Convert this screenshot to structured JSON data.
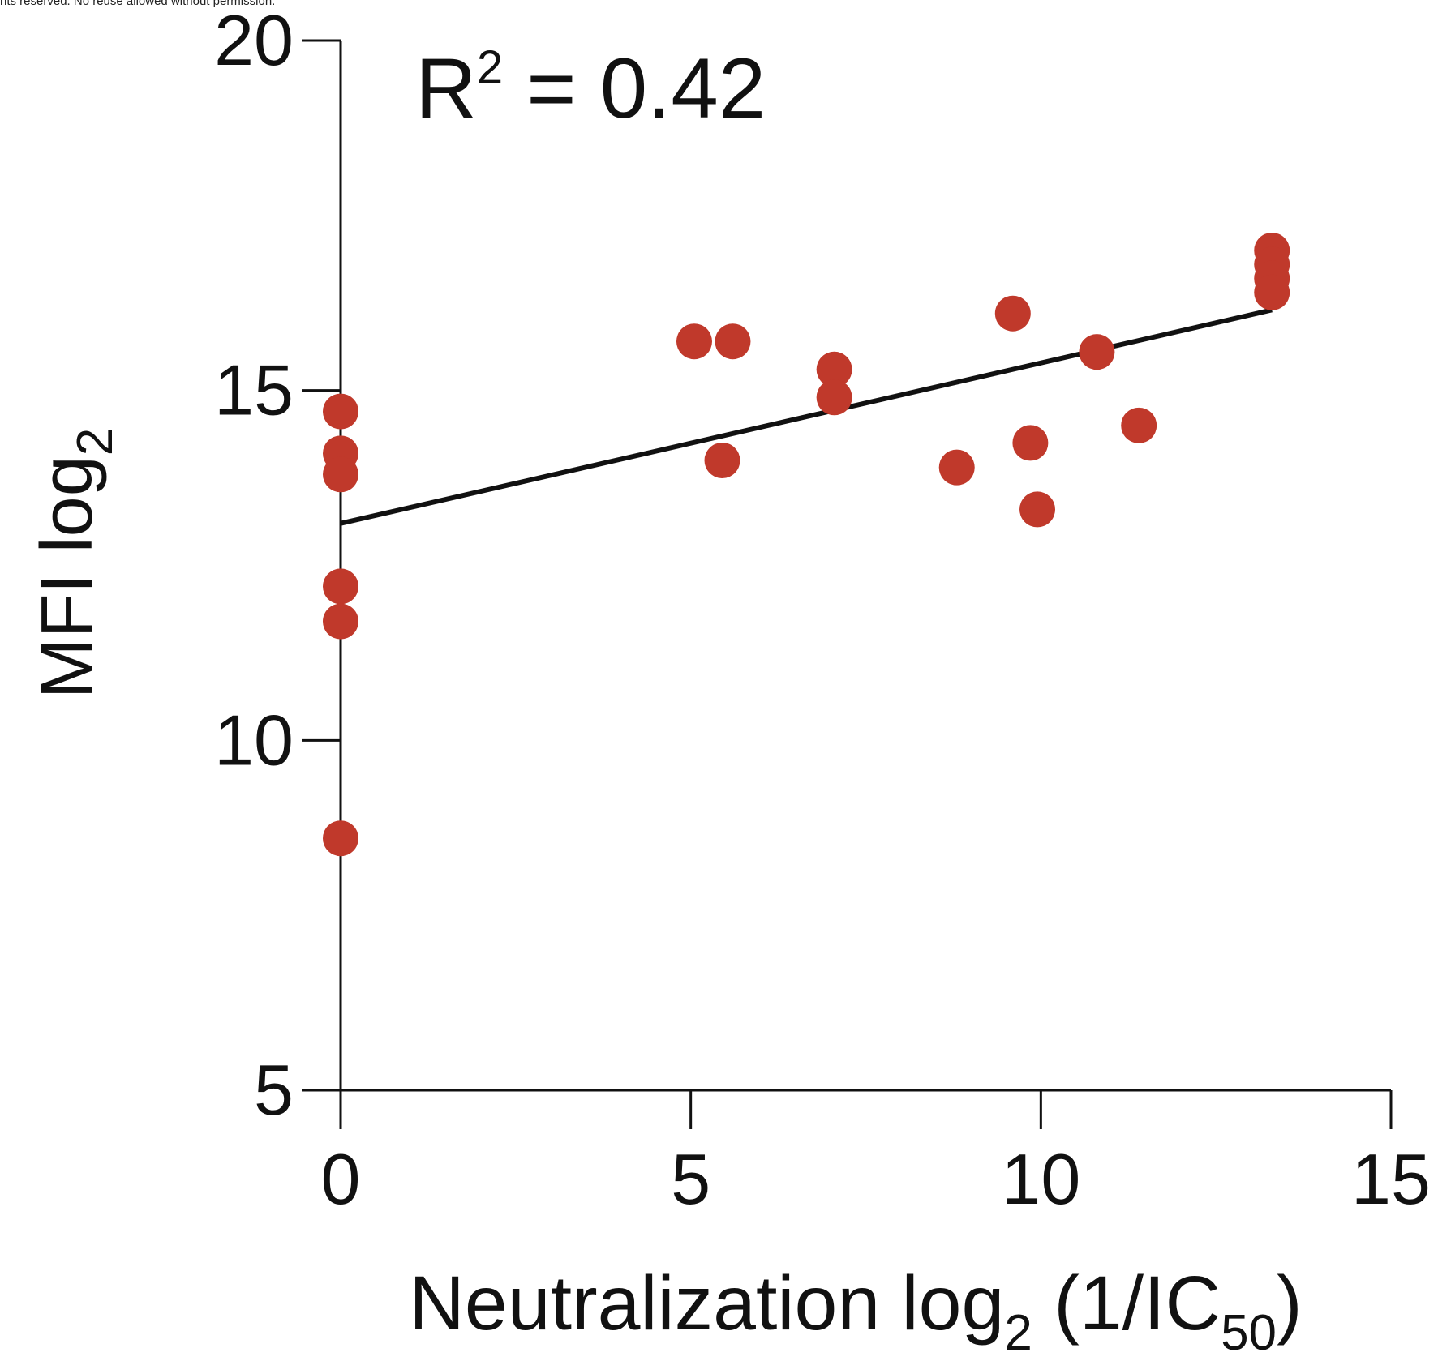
{
  "header": {
    "note": "nts reserved. No reuse allowed without permission."
  },
  "chart_data": {
    "type": "scatter",
    "title": "",
    "xlabel": {
      "main": "Neutralization log",
      "sub": "2",
      "after": " (1/IC",
      "sub2": "50",
      "end": ")"
    },
    "ylabel": {
      "main": "MFI log",
      "sub": "2"
    },
    "xlim": [
      0,
      15
    ],
    "ylim": [
      5,
      20
    ],
    "xticks": [
      0,
      5,
      10,
      15
    ],
    "yticks": [
      5,
      10,
      15,
      20
    ],
    "xtick_labels": [
      "0",
      "5",
      "10",
      "15"
    ],
    "ytick_labels": [
      "5",
      "10",
      "15",
      "20"
    ],
    "grid": false,
    "annotation": {
      "prefix": "R",
      "sup": "2",
      "suffix": " = 0.42"
    },
    "point_color": "#c0392b",
    "line_color": "#111111",
    "series": [
      {
        "points": [
          [
            0,
            14.7
          ],
          [
            0,
            14.1
          ],
          [
            0,
            13.8
          ],
          [
            0,
            12.2
          ],
          [
            0,
            11.7
          ],
          [
            0,
            8.6
          ],
          [
            5.05,
            15.7
          ],
          [
            5.6,
            15.7
          ],
          [
            5.45,
            14.0
          ],
          [
            7.05,
            15.3
          ],
          [
            7.05,
            14.9
          ],
          [
            8.8,
            13.9
          ],
          [
            9.6,
            16.1
          ],
          [
            9.85,
            14.25
          ],
          [
            9.95,
            13.3
          ],
          [
            10.8,
            15.55
          ],
          [
            11.4,
            14.5
          ],
          [
            13.3,
            17.0
          ],
          [
            13.3,
            16.8
          ],
          [
            13.3,
            16.6
          ],
          [
            13.3,
            16.4
          ]
        ]
      }
    ],
    "fit_line": {
      "x": [
        0,
        13.3
      ],
      "y": [
        13.1,
        16.15
      ]
    }
  }
}
